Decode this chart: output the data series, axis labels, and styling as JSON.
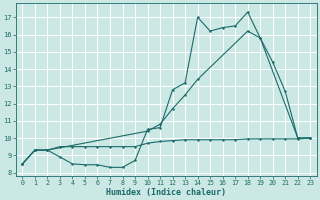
{
  "title": "",
  "xlabel": "Humidex (Indice chaleur)",
  "bg_color": "#cce8e4",
  "grid_color": "#ffffff",
  "line_color": "#1a6b6b",
  "xlim": [
    -0.5,
    23.5
  ],
  "ylim": [
    7.8,
    17.8
  ],
  "xtick_vals": [
    0,
    1,
    2,
    3,
    4,
    5,
    6,
    7,
    8,
    9,
    10,
    11,
    12,
    13,
    14,
    15,
    16,
    17,
    18,
    19,
    20,
    21,
    22,
    23
  ],
  "ytick_vals": [
    8,
    9,
    10,
    11,
    12,
    13,
    14,
    15,
    16,
    17
  ],
  "line1_x": [
    0,
    1,
    2,
    3,
    4,
    5,
    6,
    7,
    8,
    9,
    10,
    11,
    12,
    13,
    14,
    15,
    16,
    17,
    18,
    19,
    20,
    21,
    22,
    23
  ],
  "line1_y": [
    8.5,
    9.3,
    9.3,
    9.5,
    9.5,
    9.5,
    9.5,
    9.5,
    9.5,
    9.5,
    9.7,
    9.8,
    9.85,
    9.9,
    9.9,
    9.9,
    9.9,
    9.9,
    9.95,
    9.95,
    9.95,
    9.95,
    9.95,
    10.0
  ],
  "line2_x": [
    0,
    1,
    2,
    3,
    4,
    5,
    6,
    7,
    8,
    9,
    10,
    11,
    12,
    13,
    14,
    15,
    16,
    17,
    18,
    19,
    20,
    21,
    22,
    23
  ],
  "line2_y": [
    8.5,
    9.3,
    9.3,
    8.9,
    8.5,
    8.45,
    8.45,
    8.3,
    8.3,
    8.7,
    10.5,
    10.6,
    12.8,
    13.2,
    17.0,
    16.2,
    16.4,
    16.5,
    17.3,
    15.8,
    14.4,
    12.7,
    10.0,
    10.0
  ],
  "line3_x": [
    0,
    1,
    2,
    10,
    11,
    12,
    13,
    14,
    18,
    19,
    22,
    23
  ],
  "line3_y": [
    8.5,
    9.3,
    9.3,
    10.4,
    10.8,
    11.7,
    12.5,
    13.4,
    16.2,
    15.8,
    10.0,
    10.0
  ]
}
